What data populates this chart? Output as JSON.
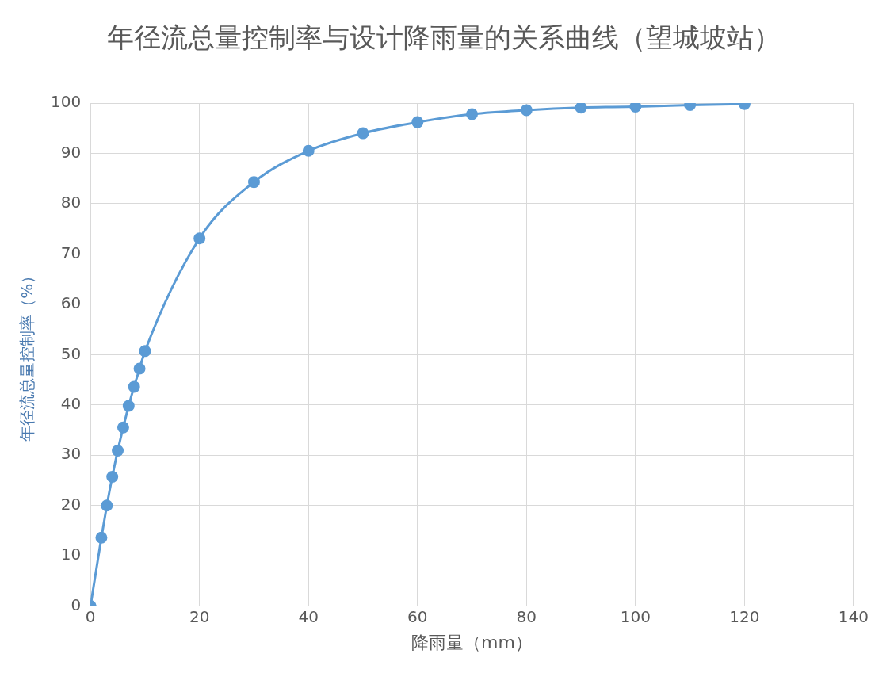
{
  "chart_data": {
    "type": "line",
    "title": "年径流总量控制率与设计降雨量的关系曲线（望城坡站）",
    "xlabel": "降雨量（mm）",
    "ylabel": "年径流总量控制率（%）",
    "series": [
      {
        "color": "#5b9bd5",
        "x": [
          0,
          2,
          3,
          4,
          5,
          6,
          7,
          8,
          9,
          10,
          20,
          30,
          40,
          50,
          60,
          70,
          80,
          90,
          100,
          110,
          120
        ],
        "values": [
          0,
          13.6,
          20.0,
          25.7,
          30.9,
          35.5,
          39.8,
          43.6,
          47.2,
          50.7,
          73.1,
          84.3,
          90.5,
          94.0,
          96.2,
          97.8,
          98.6,
          99.1,
          99.3,
          99.6,
          99.8
        ]
      }
    ],
    "xlim": [
      0,
      140
    ],
    "xticks": [
      0,
      20,
      40,
      60,
      80,
      100,
      120,
      140
    ],
    "ylim": [
      0,
      100
    ],
    "yticks": [
      0,
      10,
      20,
      30,
      40,
      50,
      60,
      70,
      80,
      90,
      100
    ],
    "grid": true,
    "legend": false,
    "marker": "circle",
    "line_style": "solid"
  }
}
